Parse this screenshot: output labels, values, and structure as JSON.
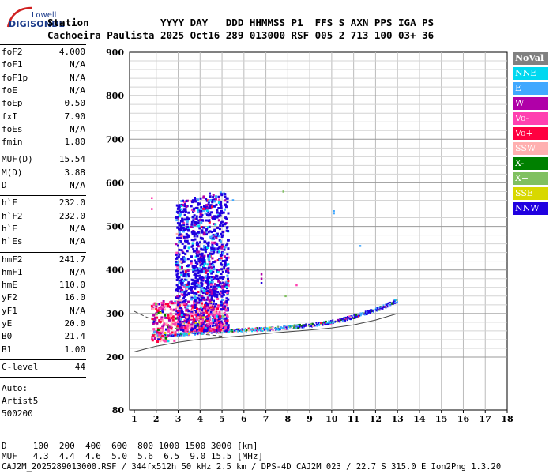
{
  "logo": {
    "line1": "Lowell",
    "line2": "DIGISONDE"
  },
  "header": {
    "row1": "Station            YYYY DAY   DDD HHMMSS P1  FFS S AXN PPS IGA PS",
    "row2": "Cachoeira Paulista 2025 Oct16 289 013000 RSF 005 2 713 100 03+ 36"
  },
  "parameters": [
    {
      "label": "foF2",
      "value": "4.000"
    },
    {
      "label": "foF1",
      "value": "N/A"
    },
    {
      "label": "foF1p",
      "value": "N/A"
    },
    {
      "label": "foE",
      "value": "N/A"
    },
    {
      "label": "foEp",
      "value": "0.50"
    },
    {
      "label": "fxI",
      "value": "7.90"
    },
    {
      "label": "foEs",
      "value": "N/A"
    },
    {
      "label": "fmin",
      "value": "1.80"
    },
    {
      "label": "MUF(D)",
      "value": "15.54"
    },
    {
      "label": "M(D)",
      "value": "3.88"
    },
    {
      "label": "D",
      "value": "N/A"
    },
    {
      "label": "h`F",
      "value": "232.0"
    },
    {
      "label": "h`F2",
      "value": "232.0"
    },
    {
      "label": "h`E",
      "value": "N/A"
    },
    {
      "label": "h`Es",
      "value": "N/A"
    },
    {
      "label": "hmF2",
      "value": "241.7"
    },
    {
      "label": "hmF1",
      "value": "N/A"
    },
    {
      "label": "hmE",
      "value": "110.0"
    },
    {
      "label": "yF2",
      "value": "16.0"
    },
    {
      "label": "yF1",
      "value": "N/A"
    },
    {
      "label": "yE",
      "value": "20.0"
    },
    {
      "label": "B0",
      "value": "21.4"
    },
    {
      "label": "B1",
      "value": "1.00"
    },
    {
      "label": "C-level",
      "value": "44"
    }
  ],
  "autoscaling": {
    "line1": "Auto:",
    "line2": "Artist5",
    "line3": "500200"
  },
  "legend": [
    {
      "label": "NoVal",
      "color": "#808080"
    },
    {
      "label": "NNE",
      "color": "#00d8f0"
    },
    {
      "label": "E",
      "color": "#40a8ff"
    },
    {
      "label": "W",
      "color": "#b000a8"
    },
    {
      "label": "Vo-",
      "color": "#ff40b0"
    },
    {
      "label": "Vo+",
      "color": "#ff0040"
    },
    {
      "label": "SSW",
      "color": "#ffb0b0"
    },
    {
      "label": "X-",
      "color": "#008000"
    },
    {
      "label": "X+",
      "color": "#80c060"
    },
    {
      "label": "SSE",
      "color": "#d8d800"
    },
    {
      "label": "NNW",
      "color": "#2000e0"
    }
  ],
  "footer": {
    "d_row": "D     100  200  400  600  800 1000 1500 3000 [km]",
    "muf_row": "MUF   4.3  4.4  4.6  5.0  5.6  6.5  9.0 15.5 [MHz]",
    "file_row": "CAJ2M_2025289013000.RSF / 344fx512h 50 kHz 2.5 km / DPS-4D CAJ2M 023 / 22.7 S 315.0 E Ion2Png 1.3.20"
  },
  "chart_data": {
    "type": "scatter",
    "xlim": [
      1,
      18
    ],
    "ylim": [
      80,
      900
    ],
    "x_ticks": [
      "1",
      "2",
      "3",
      "4",
      "5",
      "6",
      "7",
      "8",
      "9",
      "10",
      "11",
      "12",
      "13",
      "14",
      "15",
      "16",
      "17",
      "18"
    ],
    "y_ticks": [
      "80",
      "200",
      "300",
      "400",
      "500",
      "600",
      "700",
      "800",
      "900"
    ],
    "y_axis_break": "80 to 200",
    "grid": true,
    "legend_placement": "right",
    "traces": {
      "f_layer_trace": [
        [
          1.8,
          248
        ],
        [
          2.5,
          250
        ],
        [
          3,
          252
        ],
        [
          4,
          256
        ],
        [
          5,
          260
        ],
        [
          6,
          262
        ],
        [
          7,
          264
        ],
        [
          8,
          268
        ],
        [
          9,
          273
        ],
        [
          10,
          280
        ],
        [
          11,
          292
        ],
        [
          12,
          308
        ],
        [
          12.5,
          318
        ],
        [
          13,
          330
        ]
      ],
      "spread_f_columns": [
        {
          "x_range": [
            2.9,
            3.5
          ],
          "y_range": [
            260,
            560
          ]
        },
        {
          "x_range": [
            3.6,
            4.3
          ],
          "y_range": [
            260,
            570
          ]
        },
        {
          "x_range": [
            4.3,
            5.3
          ],
          "y_range": [
            260,
            580
          ]
        }
      ],
      "scattered_low": {
        "x_range": [
          1.8,
          2.9
        ],
        "y_range": [
          235,
          330
        ]
      }
    },
    "model_curves": {
      "o_trace": [
        [
          1,
          212
        ],
        [
          2,
          225
        ],
        [
          3,
          234
        ],
        [
          4,
          241
        ],
        [
          5,
          245
        ],
        [
          6,
          249
        ],
        [
          7,
          254
        ],
        [
          8,
          258
        ],
        [
          9,
          262
        ],
        [
          10,
          267
        ],
        [
          11,
          274
        ],
        [
          12,
          285
        ],
        [
          13,
          300
        ]
      ],
      "x_trace_dashed": [
        [
          1,
          305
        ],
        [
          1.5,
          293
        ],
        [
          2,
          282
        ],
        [
          2.5,
          272
        ],
        [
          3,
          264
        ],
        [
          3.5,
          258
        ],
        [
          4,
          253
        ],
        [
          5,
          248
        ]
      ]
    }
  }
}
